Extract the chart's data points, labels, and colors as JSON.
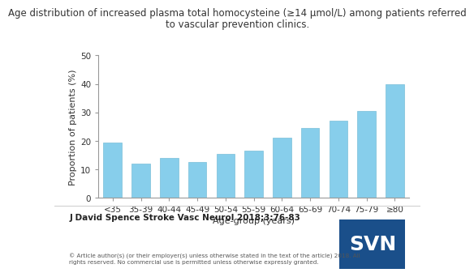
{
  "categories": [
    "<35",
    "35-39",
    "40-44",
    "45-49",
    "50-54",
    "55-59",
    "60-64",
    "65-69",
    "70-74",
    "75-79",
    "≥80"
  ],
  "values": [
    19.5,
    12.0,
    14.0,
    12.5,
    15.5,
    16.5,
    21.0,
    24.5,
    27.0,
    30.5,
    40.0
  ],
  "bar_color": "#87CEEB",
  "bar_edge_color": "#7ABFD8",
  "title_line1": "Age distribution of increased plasma total homocysteine (≥14 μmol/L) among patients referred",
  "title_line2": "to vascular prevention clinics.",
  "xlabel": "Age-group (years)",
  "ylabel": "Proportion of patients (%)",
  "ylim": [
    0,
    50
  ],
  "yticks": [
    0,
    10,
    20,
    30,
    40,
    50
  ],
  "title_fontsize": 8.5,
  "axis_fontsize": 8.0,
  "tick_fontsize": 7.5,
  "background_color": "#ffffff",
  "journal_text": "J David Spence Stroke Vasc Neurol 2018;3:76-83",
  "copyright_text": "© Article author(s) (or their employer(s) unless otherwise stated in the text of the article) 2018. All\nrights reserved. No commercial use is permitted unless otherwise expressly granted.",
  "svn_box_color": "#1a4f8a",
  "svn_text": "SVN"
}
